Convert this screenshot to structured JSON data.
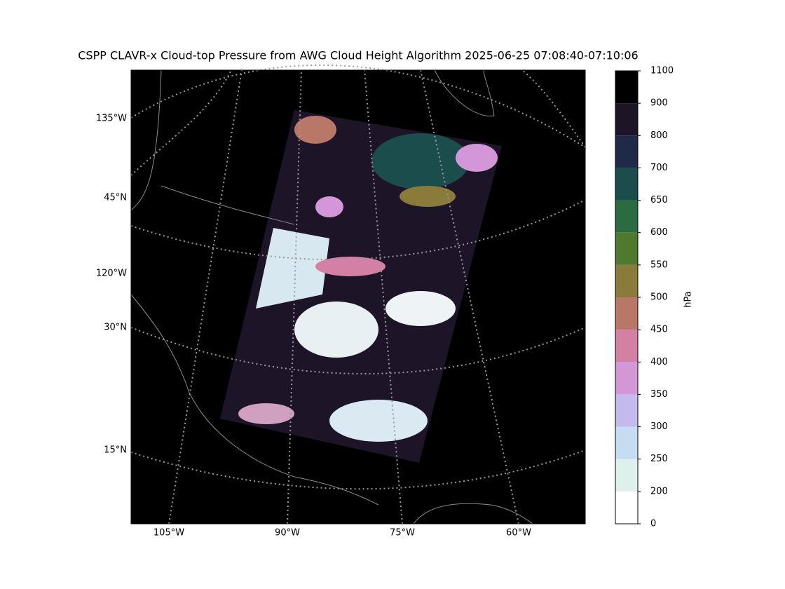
{
  "title": "CSPP CLAVR-x Cloud-top Pressure from AWG Cloud Height Algorithm 2025-06-25 07:08:40-07:10:06",
  "map": {
    "bottom_labels": [
      "105°W",
      "90°W",
      "75°W",
      "60°W"
    ],
    "left_labels": [
      "135°W",
      "45°N",
      "120°W",
      "30°N",
      "15°N"
    ]
  },
  "colorbar": {
    "label": "hPa",
    "ticks": [
      0,
      200,
      250,
      300,
      350,
      400,
      450,
      500,
      550,
      600,
      650,
      700,
      800,
      900,
      1100
    ],
    "colors": [
      "#ffffff",
      "#ddf0ec",
      "#c6dcf0",
      "#c4baee",
      "#d397d8",
      "#d47fa4",
      "#b87767",
      "#8a7b3a",
      "#4f7a2e",
      "#2a6b3f",
      "#1b4d4d",
      "#1e2a48",
      "#1e1428",
      "#000000"
    ]
  }
}
